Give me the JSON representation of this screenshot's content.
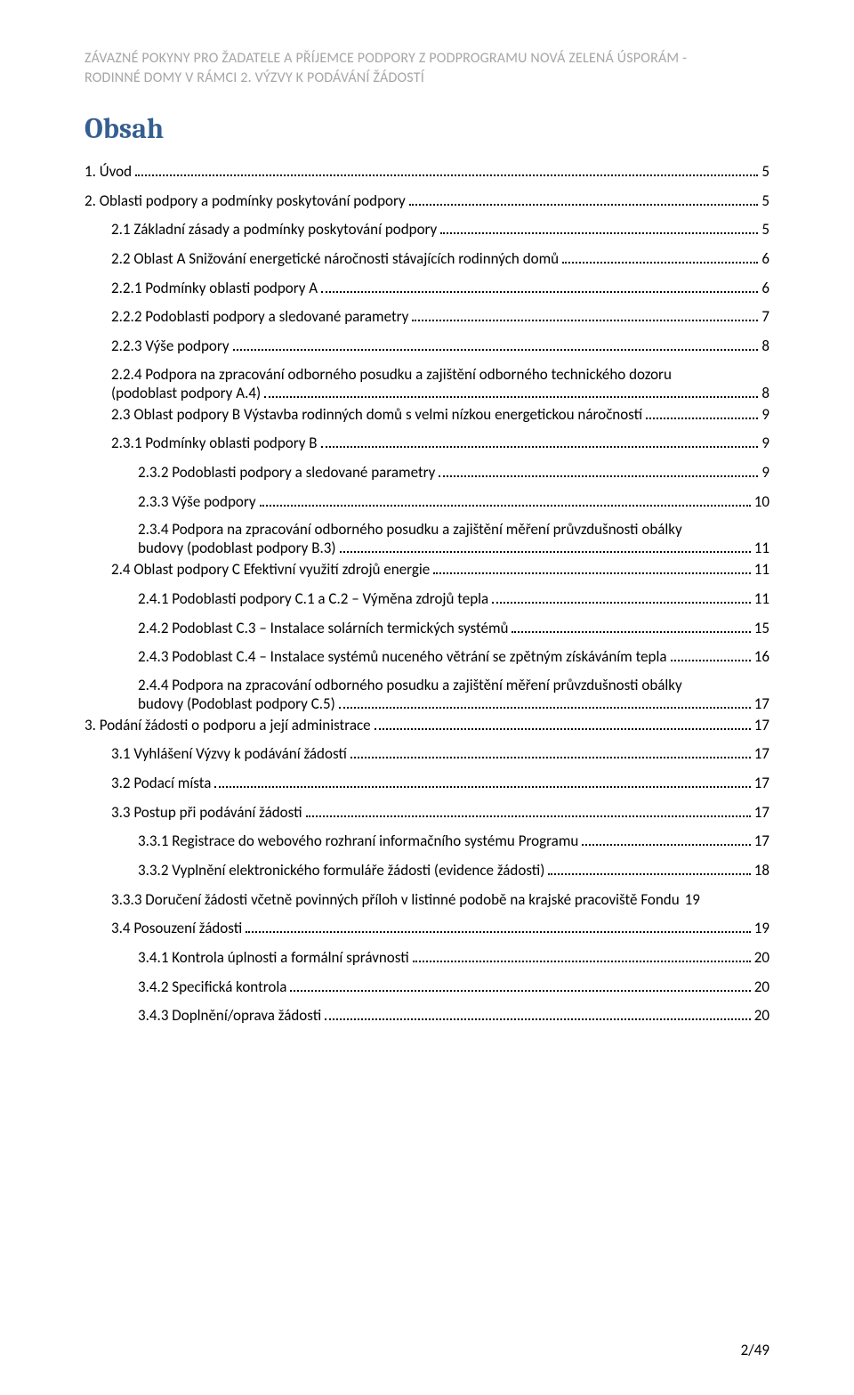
{
  "header": {
    "line1": "ZÁVAZNÉ POKYNY PRO ŽADATELE A PŘÍJEMCE PODPORY Z PODPROGRAMU NOVÁ ZELENÁ ÚSPORÁM -",
    "line2": "RODINNÉ DOMY V RÁMCI 2. VÝZVY K PODÁVÁNÍ ŽÁDOSTÍ"
  },
  "title": "Obsah",
  "toc": [
    {
      "level": 0,
      "label": "1.      Úvod",
      "page": "5"
    },
    {
      "level": 0,
      "label": "2.      Oblasti podpory a podmínky poskytování podpory",
      "page": "5"
    },
    {
      "level": 1,
      "label": "2.1       Základní zásady a podmínky poskytování podpory",
      "page": "5"
    },
    {
      "level": 1,
      "label": "2.2       Oblast A Snižování energetické náročnosti stávajících rodinných domů",
      "page": "6"
    },
    {
      "level": 2,
      "label": "2.2.1 Podmínky oblasti podpory A",
      "page": "6"
    },
    {
      "level": 2,
      "label": "2.2.2 Podoblasti podpory a sledované parametry",
      "page": "7"
    },
    {
      "level": 2,
      "label": "2.2.3 Výše podpory",
      "page": "8"
    },
    {
      "level": 2,
      "multiline": true,
      "line1": "2.2.4 Podpora na zpracování odborného posudku a zajištění odborného technického dozoru",
      "line2": "(podoblast podpory A.4)",
      "page": "8"
    },
    {
      "level": 1,
      "label": "2.3       Oblast podpory B Výstavba rodinných domů s velmi nízkou energetickou náročností",
      "page": "9"
    },
    {
      "level": 2,
      "label": "2.3.1 Podmínky oblasti podpory B",
      "page": "9"
    },
    {
      "level": 3,
      "label": "2.3.2       Podoblasti podpory a sledované parametry",
      "page": "9"
    },
    {
      "level": 3,
      "label": "2.3.3       Výše podpory",
      "page": "10"
    },
    {
      "level": 3,
      "multiline": true,
      "line1": "2.3.4       Podpora na zpracování odborného posudku a zajištění měření průvzdušnosti obálky",
      "line2": "budovy (podoblast podpory B.3)",
      "page": "11"
    },
    {
      "level": 1,
      "label": "2.4       Oblast podpory C Efektivní využití zdrojů energie",
      "page": "11"
    },
    {
      "level": 3,
      "label": "2.4.1       Podoblasti podpory C.1 a C.2 – Výměna zdrojů tepla",
      "page": "11"
    },
    {
      "level": 3,
      "label": "2.4.2       Podoblast C.3 – Instalace solárních termických systémů",
      "page": "15"
    },
    {
      "level": 3,
      "label": "2.4.3       Podoblast C.4 – Instalace systémů nuceného větrání se zpětným získáváním tepla",
      "page": "16"
    },
    {
      "level": 3,
      "multiline": true,
      "line1": "2.4.4       Podpora na zpracování odborného posudku a zajištění měření průvzdušnosti obálky",
      "line2": "budovy (Podoblast podpory C.5)",
      "page": "17"
    },
    {
      "level": 0,
      "label": "3.      Podání žádosti o podporu a její administrace",
      "page": "17"
    },
    {
      "level": 1,
      "label": "3.1 Vyhlášení Výzvy k podávání žádostí",
      "page": "17"
    },
    {
      "level": 1,
      "label": "3.2 Podací místa",
      "page": "17"
    },
    {
      "level": 1,
      "label": "3.3 Postup při podávání žádosti",
      "page": "17"
    },
    {
      "level": 3,
      "label": "3.3.1       Registrace do webového rozhraní informačního systému Programu",
      "page": "17"
    },
    {
      "level": 3,
      "label": "3.3.2       Vyplnění elektronického formuláře žádosti (evidence žádosti)",
      "page": "18"
    },
    {
      "level": 2,
      "label": "3.3.3 Doručení žádosti včetně povinných příloh v listinné podobě na krajské pracoviště Fondu",
      "page": "19",
      "nodots": true
    },
    {
      "level": 1,
      "label": "3.4       Posouzení žádosti",
      "page": "19"
    },
    {
      "level": 3,
      "label": "3.4.1       Kontrola úplnosti a formální správnosti",
      "page": "20"
    },
    {
      "level": 3,
      "label": "3.4.2       Specifická kontrola",
      "page": "20"
    },
    {
      "level": 3,
      "label": "3.4.3       Doplnění/oprava žádosti",
      "page": "20"
    }
  ],
  "footer": "2/49"
}
